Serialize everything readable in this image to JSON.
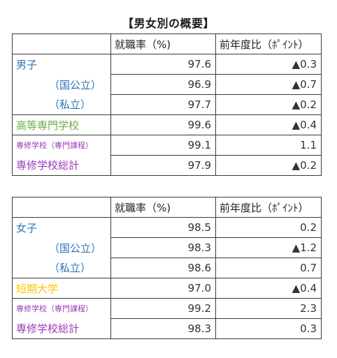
{
  "title": "【男女別の概要】",
  "colors": {
    "blue": "#2e74b5",
    "green": "#70ad47",
    "magenta": "#9b3ab5",
    "gold": "#ffc000"
  },
  "tables": [
    {
      "headers": [
        "",
        "就職率（%)",
        "前年度比（ﾎﾟｲﾝﾄ）"
      ],
      "rows": [
        {
          "label": "男子",
          "rate": "97.6",
          "diff": "▲0.3"
        },
        {
          "label": "（国公立）",
          "rate": "96.9",
          "diff": "▲0.7"
        },
        {
          "label": "（私立）",
          "rate": "97.7",
          "diff": "▲0.2"
        },
        {
          "label": "高等専門学校",
          "rate": "99.6",
          "diff": "▲0.4"
        },
        {
          "label": "専修学校（専門課程）",
          "rate": "99.1",
          "diff": "1.1"
        },
        {
          "label": "専修学校総計",
          "rate": "97.9",
          "diff": "▲0.2"
        }
      ]
    },
    {
      "headers": [
        "",
        "就職率（%)",
        "前年度比（ﾎﾟｲﾝﾄ）"
      ],
      "rows": [
        {
          "label": "女子",
          "rate": "98.5",
          "diff": "0.2"
        },
        {
          "label": "（国公立）",
          "rate": "98.3",
          "diff": "▲1.2"
        },
        {
          "label": "（私立）",
          "rate": "98.6",
          "diff": "0.7"
        },
        {
          "label": "短期大学",
          "rate": "97.0",
          "diff": "▲0.4"
        },
        {
          "label": "専修学校（専門課程）",
          "rate": "99.2",
          "diff": "2.3"
        },
        {
          "label": "専修学校総計",
          "rate": "98.3",
          "diff": "0.3"
        }
      ]
    }
  ]
}
